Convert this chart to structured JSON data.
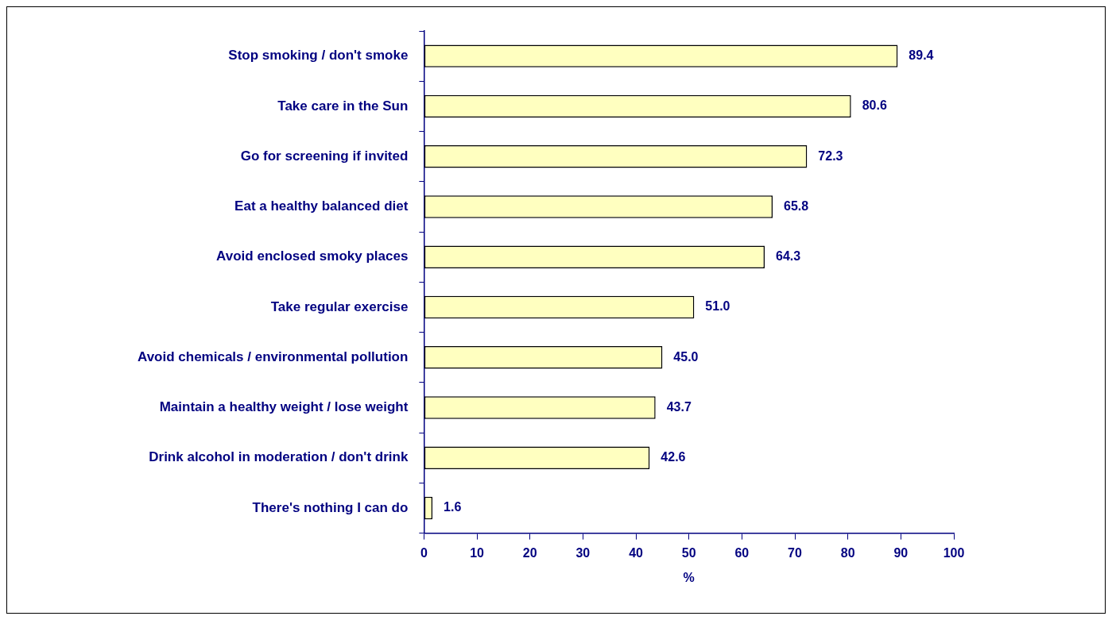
{
  "chart_data": {
    "type": "bar",
    "orientation": "horizontal",
    "xlabel": "%",
    "categories": [
      "Stop smoking / don't smoke",
      "Take care in the Sun",
      "Go for screening if invited",
      "Eat a healthy balanced diet",
      "Avoid enclosed smoky places",
      "Take regular exercise",
      "Avoid chemicals / environmental pollution",
      "Maintain a healthy weight / lose weight",
      "Drink alcohol in moderation / don't drink",
      "There's nothing I can do"
    ],
    "values": [
      89.4,
      80.6,
      72.3,
      65.8,
      64.3,
      51.0,
      45.0,
      43.7,
      42.6,
      1.6
    ],
    "value_labels": [
      "89.4",
      "80.6",
      "72.3",
      "65.8",
      "64.3",
      "51.0",
      "45.0",
      "43.7",
      "42.6",
      "1.6"
    ],
    "color": "#ffffc0",
    "xlim": [
      0,
      100
    ],
    "xticks": [
      0,
      10,
      20,
      30,
      40,
      50,
      60,
      70,
      80,
      90,
      100
    ],
    "grid": false,
    "legend": false
  }
}
